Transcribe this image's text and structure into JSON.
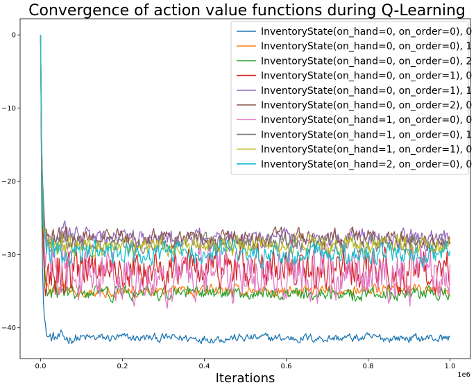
{
  "chart_data": {
    "type": "line",
    "title": "Convergence of action value functions during Q-Learning",
    "xlabel": "Iterations",
    "ylabel": "",
    "x_scale_label": "1e6",
    "xlim": [
      -0.05,
      1.05
    ],
    "ylim": [
      -44.2,
      2.2
    ],
    "xticks": [
      0.0,
      0.2,
      0.4,
      0.6,
      0.8,
      1.0
    ],
    "xtick_labels": [
      "0.0",
      "0.2",
      "0.4",
      "0.6",
      "0.8",
      "1.0"
    ],
    "yticks": [
      0,
      -10,
      -20,
      -30,
      -40
    ],
    "ytick_labels": [
      "0",
      "−10",
      "−20",
      "−30",
      "−40"
    ],
    "legend_position": "top-right",
    "x_range": [
      0,
      1.0
    ],
    "series": [
      {
        "name": "InventoryState(on_hand=0, on_order=0), 0",
        "color": "#1f77b4",
        "start": 0,
        "steady": -41.4,
        "noise": 0.5
      },
      {
        "name": "InventoryState(on_hand=0, on_order=0), 1",
        "color": "#ff7f0e",
        "start": 0,
        "steady": -34.9,
        "noise": 0.6
      },
      {
        "name": "InventoryState(on_hand=0, on_order=0), 2",
        "color": "#2ca02c",
        "start": 0,
        "steady": -35.3,
        "noise": 0.8
      },
      {
        "name": "InventoryState(on_hand=0, on_order=1), 0",
        "color": "#d62728",
        "start": 0,
        "steady": -31.8,
        "noise": 2.2
      },
      {
        "name": "InventoryState(on_hand=0, on_order=1), 1",
        "color": "#9467bd",
        "start": 0,
        "steady": -27.8,
        "noise": 1.0
      },
      {
        "name": "InventoryState(on_hand=0, on_order=2), 0",
        "color": "#8c564b",
        "start": 0,
        "steady": -27.8,
        "noise": 1.0
      },
      {
        "name": "InventoryState(on_hand=1, on_order=0), 0",
        "color": "#e377c2",
        "start": 0,
        "steady": -32.5,
        "noise": 2.8
      },
      {
        "name": "InventoryState(on_hand=1, on_order=0), 1",
        "color": "#7f7f7f",
        "start": 0,
        "steady": -28.6,
        "noise": 1.0
      },
      {
        "name": "InventoryState(on_hand=1, on_order=1), 0",
        "color": "#bcbd22",
        "start": 0,
        "steady": -28.8,
        "noise": 1.0
      },
      {
        "name": "InventoryState(on_hand=2, on_order=0), 0",
        "color": "#17becf",
        "start": 0,
        "steady": -29.9,
        "noise": 1.2
      }
    ]
  }
}
